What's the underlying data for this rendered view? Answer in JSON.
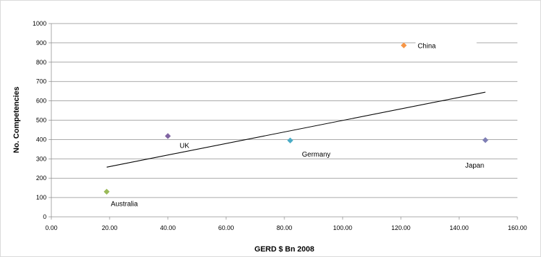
{
  "chart_data": {
    "type": "scatter",
    "title": "",
    "xlabel": "GERD $ Bn 2008",
    "ylabel": "No. Competencies",
    "xlim": [
      0,
      160
    ],
    "ylim": [
      0,
      1000
    ],
    "x_ticks": [
      "0.00",
      "20.00",
      "40.00",
      "60.00",
      "80.00",
      "100.00",
      "120.00",
      "140.00",
      "160.00"
    ],
    "y_ticks": [
      "0",
      "100",
      "200",
      "300",
      "400",
      "500",
      "600",
      "700",
      "800",
      "900",
      "1000"
    ],
    "grid": "horizontal",
    "legend": "none",
    "points": [
      {
        "label": "Australia",
        "x": 19,
        "y": 130,
        "color": "#9bbb59"
      },
      {
        "label": "UK",
        "x": 40,
        "y": 418,
        "color": "#8064a2"
      },
      {
        "label": "Germany",
        "x": 82,
        "y": 395,
        "color": "#4bacc6"
      },
      {
        "label": "China",
        "x": 121,
        "y": 887,
        "color": "#f79646"
      },
      {
        "label": "Japan",
        "x": 149,
        "y": 397,
        "color": "#7f7fb5"
      }
    ],
    "trendline": {
      "type": "linear",
      "x_start": 19,
      "y_start": 257,
      "x_end": 149,
      "y_end": 645,
      "color": "#000000"
    }
  }
}
